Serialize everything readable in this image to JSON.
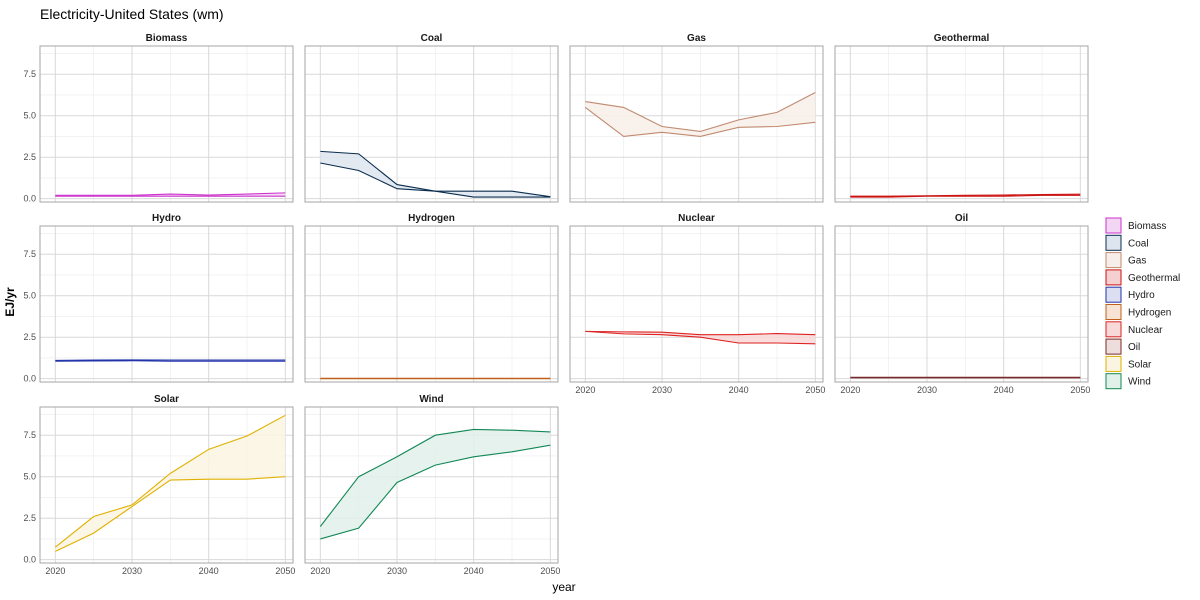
{
  "chart_data": {
    "type": "area",
    "title": "Electricity-United States (wm)",
    "xlabel": "year",
    "ylabel": "EJ/yr",
    "xlim": [
      2018,
      2051
    ],
    "ylim": [
      -0.2,
      9.2
    ],
    "x_ticks": [
      2020,
      2030,
      2040,
      2050
    ],
    "y_ticks": [
      0.0,
      2.5,
      5.0,
      7.5
    ],
    "y_tick_labels": [
      "0.0",
      "2.5",
      "5.0",
      "7.5"
    ],
    "grid": true,
    "legend_position": "right",
    "facets": [
      {
        "name": "Biomass",
        "color": "#cc33cc",
        "fill": "#f3d6f3",
        "x": [
          2020,
          2025,
          2030,
          2035,
          2040,
          2045,
          2050
        ],
        "lower": [
          0.15,
          0.15,
          0.15,
          0.15,
          0.15,
          0.15,
          0.15
        ],
        "upper": [
          0.2,
          0.2,
          0.2,
          0.28,
          0.22,
          0.28,
          0.35
        ]
      },
      {
        "name": "Coal",
        "color": "#0b2d4f",
        "fill": "#dde5ee",
        "x": [
          2020,
          2025,
          2030,
          2035,
          2040,
          2045,
          2050
        ],
        "lower": [
          2.15,
          1.7,
          0.6,
          0.45,
          0.1,
          0.1,
          0.1
        ],
        "upper": [
          2.85,
          2.7,
          0.85,
          0.45,
          0.45,
          0.45,
          0.12
        ]
      },
      {
        "name": "Gas",
        "color": "#c08a70",
        "fill": "#f8eee9",
        "x": [
          2020,
          2025,
          2030,
          2035,
          2040,
          2045,
          2050
        ],
        "lower": [
          5.5,
          3.75,
          4.0,
          3.75,
          4.3,
          4.35,
          4.6
        ],
        "upper": [
          5.85,
          5.5,
          4.35,
          4.05,
          4.75,
          5.2,
          6.4
        ]
      },
      {
        "name": "Geothermal",
        "color": "#cc1111",
        "fill": "#f6d0d0",
        "x": [
          2020,
          2025,
          2030,
          2035,
          2040,
          2045,
          2050
        ],
        "lower": [
          0.1,
          0.1,
          0.15,
          0.15,
          0.15,
          0.2,
          0.2
        ],
        "upper": [
          0.15,
          0.15,
          0.17,
          0.2,
          0.22,
          0.25,
          0.27
        ]
      },
      {
        "name": "Hydro",
        "color": "#2233aa",
        "fill": "#dcdff2",
        "x": [
          2020,
          2025,
          2030,
          2035,
          2040,
          2045,
          2050
        ],
        "lower": [
          1.05,
          1.07,
          1.08,
          1.05,
          1.05,
          1.05,
          1.05
        ],
        "upper": [
          1.1,
          1.12,
          1.13,
          1.12,
          1.12,
          1.12,
          1.12
        ]
      },
      {
        "name": "Hydrogen",
        "color": "#c0601a",
        "fill": "#f7e3d4",
        "x": [
          2020,
          2025,
          2030,
          2035,
          2040,
          2045,
          2050
        ],
        "lower": [
          0.0,
          0.0,
          0.0,
          0.0,
          0.0,
          0.0,
          0.0
        ],
        "upper": [
          0.02,
          0.02,
          0.02,
          0.02,
          0.02,
          0.02,
          0.02
        ]
      },
      {
        "name": "Nuclear",
        "color": "#dd2222",
        "fill": "#f9d8d8",
        "x": [
          2020,
          2025,
          2030,
          2035,
          2040,
          2045,
          2050
        ],
        "lower": [
          2.85,
          2.7,
          2.65,
          2.5,
          2.15,
          2.15,
          2.1
        ],
        "upper": [
          2.85,
          2.82,
          2.8,
          2.65,
          2.65,
          2.72,
          2.65
        ]
      },
      {
        "name": "Oil",
        "color": "#7a2a2a",
        "fill": "#eedddd",
        "x": [
          2020,
          2025,
          2030,
          2035,
          2040,
          2045,
          2050
        ],
        "lower": [
          0.05,
          0.05,
          0.05,
          0.05,
          0.05,
          0.05,
          0.05
        ],
        "upper": [
          0.08,
          0.08,
          0.08,
          0.08,
          0.08,
          0.08,
          0.08
        ]
      },
      {
        "name": "Solar",
        "color": "#e0b000",
        "fill": "#faf5e0",
        "x": [
          2020,
          2025,
          2030,
          2035,
          2040,
          2045,
          2050
        ],
        "lower": [
          0.5,
          1.6,
          3.2,
          4.8,
          4.85,
          4.85,
          5.0
        ],
        "upper": [
          0.75,
          2.6,
          3.3,
          5.2,
          6.65,
          7.45,
          8.7
        ]
      },
      {
        "name": "Wind",
        "color": "#118855",
        "fill": "#e2f0ea",
        "x": [
          2020,
          2025,
          2030,
          2035,
          2040,
          2045,
          2050
        ],
        "lower": [
          1.25,
          1.9,
          4.65,
          5.7,
          6.2,
          6.5,
          6.9
        ],
        "upper": [
          2.0,
          5.0,
          6.2,
          7.5,
          7.85,
          7.8,
          7.7
        ]
      }
    ]
  }
}
